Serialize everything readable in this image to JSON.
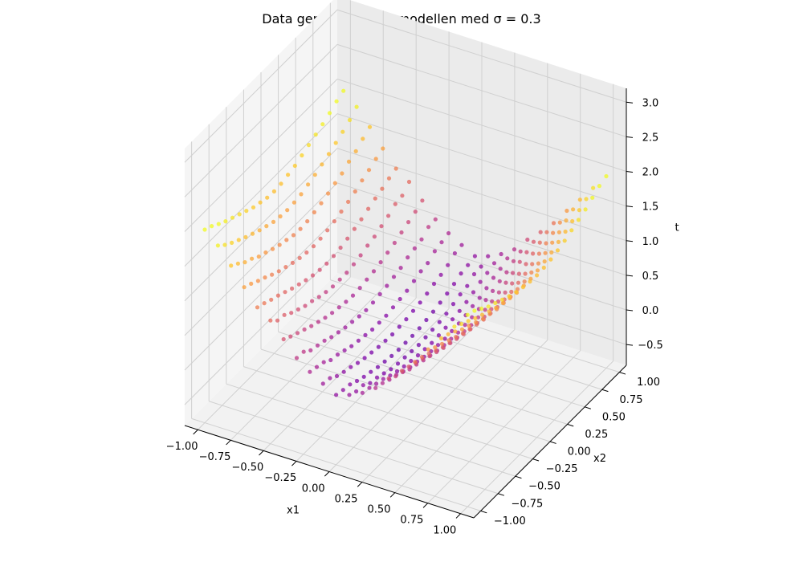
{
  "chart_data": {
    "type": "scatter",
    "subtype": "3d-scatter",
    "title": "Data genererad från modellen med σ = 0.3",
    "xlabel": "x1",
    "ylabel": "x2",
    "zlabel": "t",
    "xlim": [
      -1.1,
      1.1
    ],
    "ylim": [
      -1.1,
      1.1
    ],
    "zlim": [
      -0.8,
      3.2
    ],
    "x_ticks": [
      "−1.00",
      "−0.75",
      "−0.50",
      "−0.25",
      "0.00",
      "0.25",
      "0.50",
      "0.75",
      "1.00"
    ],
    "x_tick_values": [
      -1,
      -0.75,
      -0.5,
      -0.25,
      0,
      0.25,
      0.5,
      0.75,
      1
    ],
    "y_ticks": [
      "−1.00",
      "−0.75",
      "−0.50",
      "−0.25",
      "0.00",
      "0.25",
      "0.50",
      "0.75",
      "1.00"
    ],
    "y_tick_values": [
      -1,
      -0.75,
      -0.5,
      -0.25,
      0,
      0.25,
      0.5,
      0.75,
      1
    ],
    "z_ticks": [
      "−0.5",
      "0.0",
      "0.5",
      "1.0",
      "1.5",
      "2.0",
      "2.5",
      "3.0"
    ],
    "z_tick_values": [
      -0.5,
      0,
      0.5,
      1,
      1.5,
      2,
      2.5,
      3
    ],
    "colormap": "plasma",
    "grid": true,
    "point_color_low": "#7e03a8",
    "point_color_high": "#f0f921",
    "grid_x": [
      -1,
      -0.9,
      -0.8,
      -0.7,
      -0.6,
      -0.5,
      -0.4,
      -0.3,
      -0.2,
      -0.1,
      0,
      0.1,
      0.2,
      0.3,
      0.4,
      0.5,
      0.6,
      0.7,
      0.8,
      0.9,
      1
    ],
    "grid_y": [
      -1,
      -0.9,
      -0.8,
      -0.7,
      -0.6,
      -0.5,
      -0.4,
      -0.3,
      -0.2,
      -0.1,
      0,
      0.1,
      0.2,
      0.3,
      0.4,
      0.5,
      0.6,
      0.7,
      0.8,
      0.9,
      1
    ],
    "t_values": [
      [
        1.99,
        1.82,
        1.59,
        1.34,
        1.11,
        0.98,
        0.77,
        0.56,
        0.42,
        0.31,
        0.21,
        0.27,
        0.36,
        0.49,
        0.69,
        0.86,
        1.05,
        1.29,
        1.51,
        1.74,
        1.97
      ],
      [
        1.94,
        1.73,
        1.52,
        1.29,
        1.07,
        0.88,
        0.71,
        0.55,
        0.39,
        0.29,
        0.18,
        0.22,
        0.33,
        0.46,
        0.62,
        0.82,
        1.02,
        1.22,
        1.47,
        1.68,
        1.93
      ],
      [
        1.87,
        1.66,
        1.44,
        1.23,
        1.02,
        0.86,
        0.66,
        0.47,
        0.36,
        0.22,
        0.16,
        0.21,
        0.29,
        0.41,
        0.58,
        0.77,
        0.97,
        1.17,
        1.41,
        1.62,
        1.86
      ],
      [
        1.81,
        1.6,
        1.39,
        1.18,
        0.98,
        0.79,
        0.61,
        0.44,
        0.29,
        0.18,
        0.11,
        0.14,
        0.26,
        0.38,
        0.52,
        0.73,
        0.91,
        1.12,
        1.34,
        1.56,
        1.79
      ],
      [
        1.76,
        1.54,
        1.32,
        1.12,
        0.93,
        0.74,
        0.56,
        0.41,
        0.27,
        0.15,
        0.07,
        0.12,
        0.21,
        0.33,
        0.49,
        0.67,
        0.86,
        1.07,
        1.29,
        1.51,
        1.74
      ],
      [
        1.71,
        1.49,
        1.28,
        1.07,
        0.88,
        0.69,
        0.52,
        0.36,
        0.23,
        0.11,
        0.04,
        0.08,
        0.17,
        0.29,
        0.45,
        0.63,
        0.82,
        1.02,
        1.24,
        1.46,
        1.69
      ],
      [
        1.66,
        1.44,
        1.23,
        1.03,
        0.84,
        0.66,
        0.48,
        0.33,
        0.19,
        0.08,
        0.01,
        0.04,
        0.14,
        0.27,
        0.42,
        0.59,
        0.78,
        0.98,
        1.19,
        1.41,
        1.64
      ],
      [
        1.61,
        1.4,
        1.19,
        0.99,
        0.8,
        0.62,
        0.45,
        0.3,
        0.17,
        0.06,
        -0.01,
        0.02,
        0.12,
        0.24,
        0.39,
        0.56,
        0.75,
        0.95,
        1.16,
        1.38,
        1.6
      ],
      [
        1.58,
        1.36,
        1.16,
        0.96,
        0.77,
        0.59,
        0.43,
        0.28,
        0.15,
        0.04,
        -0.03,
        0.01,
        0.1,
        0.22,
        0.37,
        0.54,
        0.72,
        0.92,
        1.13,
        1.35,
        1.57
      ],
      [
        1.55,
        1.34,
        1.13,
        0.94,
        0.75,
        0.57,
        0.41,
        0.26,
        0.13,
        0.03,
        -0.04,
        0.0,
        0.09,
        0.21,
        0.36,
        0.53,
        0.71,
        0.91,
        1.12,
        1.33,
        1.55
      ],
      [
        1.54,
        1.33,
        1.12,
        0.93,
        0.74,
        0.57,
        0.4,
        0.25,
        0.13,
        0.02,
        -0.04,
        -0.01,
        0.08,
        0.2,
        0.35,
        0.52,
        0.7,
        0.9,
        1.11,
        1.33,
        1.54
      ],
      [
        1.55,
        1.34,
        1.13,
        0.94,
        0.75,
        0.57,
        0.41,
        0.26,
        0.13,
        0.03,
        -0.04,
        0.0,
        0.09,
        0.21,
        0.36,
        0.53,
        0.71,
        0.91,
        1.12,
        1.33,
        1.55
      ],
      [
        1.58,
        1.36,
        1.16,
        0.96,
        0.77,
        0.59,
        0.43,
        0.28,
        0.15,
        0.04,
        -0.03,
        0.01,
        0.1,
        0.22,
        0.37,
        0.54,
        0.72,
        0.92,
        1.13,
        1.35,
        1.57
      ],
      [
        1.61,
        1.4,
        1.19,
        0.99,
        0.8,
        0.62,
        0.45,
        0.3,
        0.17,
        0.06,
        -0.01,
        0.02,
        0.12,
        0.24,
        0.39,
        0.56,
        0.75,
        0.95,
        1.16,
        1.38,
        1.6
      ],
      [
        1.66,
        1.44,
        1.23,
        1.03,
        0.84,
        0.66,
        0.48,
        0.33,
        0.19,
        0.08,
        0.01,
        0.04,
        0.14,
        0.27,
        0.42,
        0.59,
        0.78,
        0.98,
        1.19,
        1.41,
        1.64
      ],
      [
        1.71,
        1.49,
        1.28,
        1.07,
        0.88,
        0.69,
        0.52,
        0.36,
        0.23,
        0.11,
        0.04,
        0.08,
        0.17,
        0.29,
        0.45,
        0.63,
        0.82,
        1.02,
        1.24,
        1.46,
        1.69
      ],
      [
        1.76,
        1.54,
        1.32,
        1.12,
        0.93,
        0.74,
        0.56,
        0.41,
        0.27,
        0.15,
        0.07,
        0.12,
        0.21,
        0.33,
        0.49,
        0.67,
        0.86,
        1.07,
        1.29,
        1.51,
        1.74
      ],
      [
        1.81,
        1.6,
        1.39,
        1.18,
        0.98,
        0.79,
        0.61,
        0.44,
        0.29,
        0.18,
        0.11,
        0.14,
        0.26,
        0.38,
        0.52,
        0.73,
        0.91,
        1.12,
        1.34,
        1.56,
        1.79
      ],
      [
        1.87,
        1.66,
        1.44,
        1.23,
        1.02,
        0.86,
        0.66,
        0.47,
        0.36,
        0.22,
        0.16,
        0.21,
        0.29,
        0.41,
        0.58,
        0.77,
        0.97,
        1.17,
        1.41,
        1.62,
        1.86
      ],
      [
        1.94,
        1.73,
        1.52,
        1.29,
        1.07,
        0.88,
        0.71,
        0.55,
        0.39,
        0.29,
        0.18,
        0.22,
        0.33,
        0.46,
        0.62,
        0.82,
        1.02,
        1.22,
        1.47,
        1.68,
        1.93
      ],
      [
        1.99,
        1.82,
        1.59,
        1.34,
        1.11,
        0.98,
        0.77,
        0.56,
        0.42,
        0.31,
        0.21,
        0.27,
        0.36,
        0.49,
        0.69,
        0.86,
        1.05,
        1.29,
        1.51,
        1.74,
        1.97
      ]
    ]
  }
}
